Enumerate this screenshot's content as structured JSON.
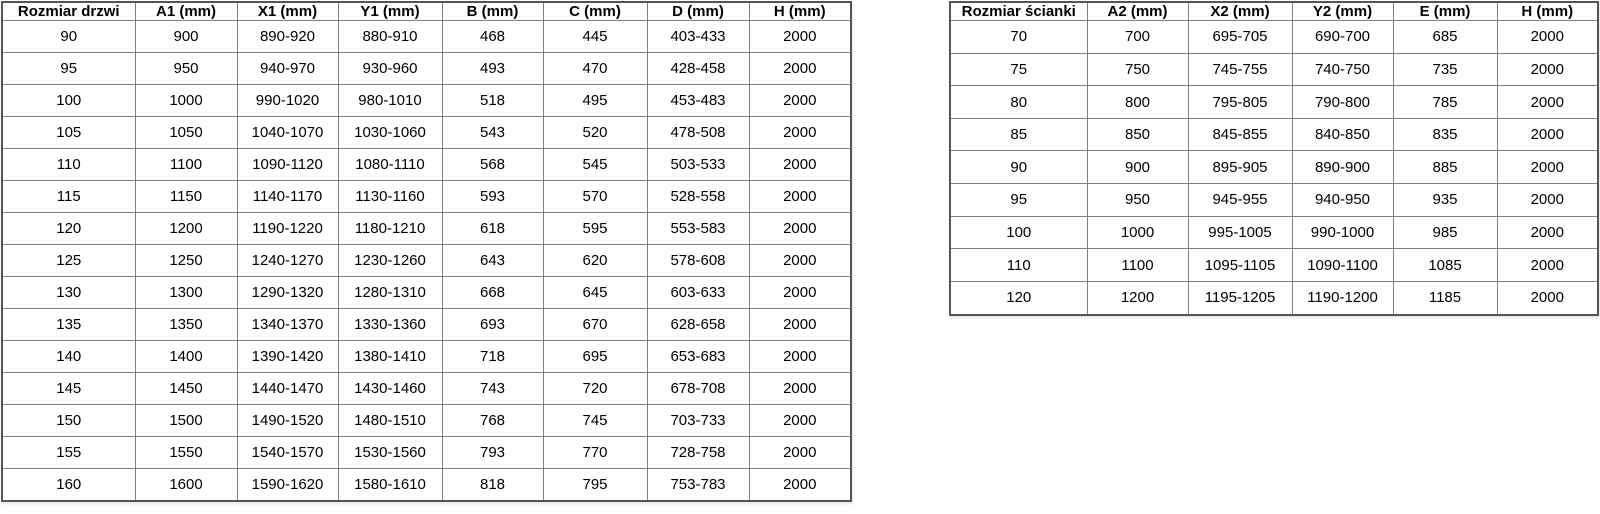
{
  "colors": {
    "background": "#ffffff",
    "border_inner": "#808080",
    "border_outer": "#555555",
    "text": "#000000"
  },
  "tables": [
    {
      "name": "door-sizes",
      "headers": [
        "Rozmiar drzwi",
        "A1 (mm)",
        "X1 (mm)",
        "Y1 (mm)",
        "B (mm)",
        "C (mm)",
        "D (mm)",
        "H (mm)"
      ],
      "rows": [
        [
          "90",
          "900",
          "890-920",
          "880-910",
          "468",
          "445",
          "403-433",
          "2000"
        ],
        [
          "95",
          "950",
          "940-970",
          "930-960",
          "493",
          "470",
          "428-458",
          "2000"
        ],
        [
          "100",
          "1000",
          "990-1020",
          "980-1010",
          "518",
          "495",
          "453-483",
          "2000"
        ],
        [
          "105",
          "1050",
          "1040-1070",
          "1030-1060",
          "543",
          "520",
          "478-508",
          "2000"
        ],
        [
          "110",
          "1100",
          "1090-1120",
          "1080-1110",
          "568",
          "545",
          "503-533",
          "2000"
        ],
        [
          "115",
          "1150",
          "1140-1170",
          "1130-1160",
          "593",
          "570",
          "528-558",
          "2000"
        ],
        [
          "120",
          "1200",
          "1190-1220",
          "1180-1210",
          "618",
          "595",
          "553-583",
          "2000"
        ],
        [
          "125",
          "1250",
          "1240-1270",
          "1230-1260",
          "643",
          "620",
          "578-608",
          "2000"
        ],
        [
          "130",
          "1300",
          "1290-1320",
          "1280-1310",
          "668",
          "645",
          "603-633",
          "2000"
        ],
        [
          "135",
          "1350",
          "1340-1370",
          "1330-1360",
          "693",
          "670",
          "628-658",
          "2000"
        ],
        [
          "140",
          "1400",
          "1390-1420",
          "1380-1410",
          "718",
          "695",
          "653-683",
          "2000"
        ],
        [
          "145",
          "1450",
          "1440-1470",
          "1430-1460",
          "743",
          "720",
          "678-708",
          "2000"
        ],
        [
          "150",
          "1500",
          "1490-1520",
          "1480-1510",
          "768",
          "745",
          "703-733",
          "2000"
        ],
        [
          "155",
          "1550",
          "1540-1570",
          "1530-1560",
          "793",
          "770",
          "728-758",
          "2000"
        ],
        [
          "160",
          "1600",
          "1590-1620",
          "1580-1610",
          "818",
          "795",
          "753-783",
          "2000"
        ]
      ]
    },
    {
      "name": "wall-sizes",
      "headers": [
        "Rozmiar ścianki",
        "A2 (mm)",
        "X2 (mm)",
        "Y2 (mm)",
        "E (mm)",
        "H (mm)"
      ],
      "rows": [
        [
          "70",
          "700",
          "695-705",
          "690-700",
          "685",
          "2000"
        ],
        [
          "75",
          "750",
          "745-755",
          "740-750",
          "735",
          "2000"
        ],
        [
          "80",
          "800",
          "795-805",
          "790-800",
          "785",
          "2000"
        ],
        [
          "85",
          "850",
          "845-855",
          "840-850",
          "835",
          "2000"
        ],
        [
          "90",
          "900",
          "895-905",
          "890-900",
          "885",
          "2000"
        ],
        [
          "95",
          "950",
          "945-955",
          "940-950",
          "935",
          "2000"
        ],
        [
          "100",
          "1000",
          "995-1005",
          "990-1000",
          "985",
          "2000"
        ],
        [
          "110",
          "1100",
          "1095-1105",
          "1090-1100",
          "1085",
          "2000"
        ],
        [
          "120",
          "1200",
          "1195-1205",
          "1190-1200",
          "1185",
          "2000"
        ]
      ]
    }
  ]
}
